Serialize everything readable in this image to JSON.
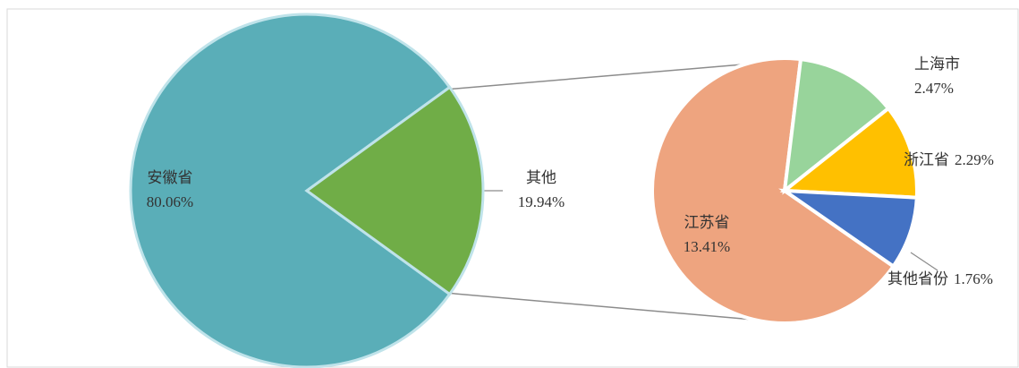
{
  "chart_data": [
    {
      "type": "pie",
      "categories": [
        "安徽省",
        "其他"
      ],
      "values": [
        80.06,
        19.94
      ],
      "value_labels": [
        "80.06%",
        "19.94%"
      ],
      "colors": [
        "#5aaeb8",
        "#70ad47"
      ]
    },
    {
      "type": "pie",
      "categories": [
        "江苏省",
        "上海市",
        "浙江省",
        "其他省份"
      ],
      "values": [
        13.41,
        2.47,
        2.29,
        1.76
      ],
      "value_labels": [
        "13.41%",
        "2.47%",
        "2.29%",
        "1.76%"
      ],
      "colors": [
        "#eea47f",
        "#98d49b",
        "#ffc000",
        "#4472c4"
      ]
    }
  ]
}
